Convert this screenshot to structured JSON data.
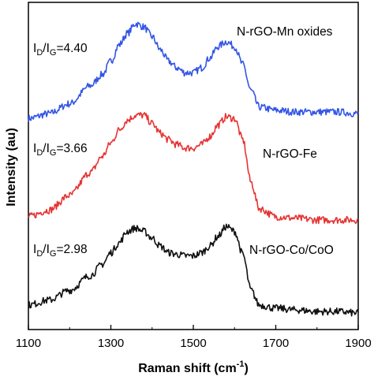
{
  "chart_data": {
    "type": "line",
    "title": "",
    "xlabel": "Raman shift (cm",
    "xlabel_superscript": "-1",
    "xlabel_suffix": ")",
    "ylabel": "Intensity (au)",
    "xlim": [
      1100,
      1900
    ],
    "ylim": [
      0,
      1
    ],
    "x_ticks": [
      1100,
      1300,
      1500,
      1700,
      1900
    ],
    "y_ticks_shown": false,
    "grid": false,
    "legend": "none (direct labels)",
    "series": [
      {
        "name": "N-rGO-Mn oxides",
        "color": "#3355e6",
        "ratio_text": "=4.40",
        "x": [
          1100,
          1150,
          1200,
          1250,
          1280,
          1300,
          1320,
          1340,
          1360,
          1380,
          1400,
          1420,
          1440,
          1460,
          1480,
          1500,
          1520,
          1540,
          1560,
          1580,
          1600,
          1620,
          1640,
          1660,
          1700,
          1750,
          1800,
          1850,
          1900
        ],
        "y": [
          0.645,
          0.66,
          0.69,
          0.745,
          0.78,
          0.82,
          0.87,
          0.905,
          0.935,
          0.925,
          0.895,
          0.855,
          0.82,
          0.8,
          0.785,
          0.785,
          0.8,
          0.83,
          0.865,
          0.88,
          0.865,
          0.81,
          0.73,
          0.68,
          0.67,
          0.665,
          0.665,
          0.665,
          0.66
        ]
      },
      {
        "name": "N-rGO-Fe",
        "color": "#e63333",
        "ratio_text": "=3.66",
        "x": [
          1100,
          1150,
          1200,
          1250,
          1280,
          1300,
          1320,
          1340,
          1360,
          1380,
          1400,
          1420,
          1440,
          1460,
          1480,
          1500,
          1520,
          1540,
          1560,
          1580,
          1600,
          1620,
          1640,
          1660,
          1700,
          1750,
          1800,
          1850,
          1900
        ],
        "y": [
          0.345,
          0.365,
          0.41,
          0.48,
          0.53,
          0.57,
          0.61,
          0.64,
          0.655,
          0.655,
          0.63,
          0.6,
          0.58,
          0.565,
          0.555,
          0.555,
          0.565,
          0.59,
          0.625,
          0.65,
          0.645,
          0.58,
          0.45,
          0.37,
          0.345,
          0.34,
          0.335,
          0.335,
          0.335
        ]
      },
      {
        "name": "N-rGO-Co/CoO",
        "color": "#111111",
        "ratio_text": "=2.98",
        "x": [
          1100,
          1150,
          1200,
          1250,
          1280,
          1300,
          1320,
          1340,
          1360,
          1380,
          1400,
          1420,
          1440,
          1460,
          1480,
          1500,
          1520,
          1540,
          1560,
          1580,
          1600,
          1620,
          1640,
          1660,
          1700,
          1750,
          1800,
          1850,
          1900
        ],
        "y": [
          0.075,
          0.09,
          0.12,
          0.165,
          0.2,
          0.235,
          0.265,
          0.3,
          0.31,
          0.3,
          0.28,
          0.255,
          0.235,
          0.23,
          0.225,
          0.225,
          0.235,
          0.255,
          0.285,
          0.315,
          0.3,
          0.23,
          0.12,
          0.075,
          0.065,
          0.06,
          0.055,
          0.055,
          0.05
        ]
      }
    ],
    "annotations": [
      {
        "id": "mn",
        "label_base": "I",
        "sub_d": "D",
        "slash": "/I",
        "sub_g": "G",
        "value": "=4.40",
        "name": "N-rGO-Mn oxides"
      },
      {
        "id": "fe",
        "label_base": "I",
        "sub_d": "D",
        "slash": "/I",
        "sub_g": "G",
        "value": "=3.66",
        "name": "N-rGO-Fe"
      },
      {
        "id": "co",
        "label_base": "I",
        "sub_d": "D",
        "slash": "/I",
        "sub_g": "G",
        "value": "=2.98",
        "name": "N-rGO-Co/CoO"
      }
    ]
  }
}
